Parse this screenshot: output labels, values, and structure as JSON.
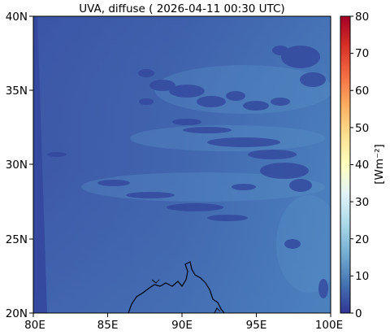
{
  "title": "UVA, diffuse ( 2026-04-11 00:30 UTC)",
  "colorbar": {
    "label": "[Wm⁻²]",
    "ticks": [
      "0",
      "10",
      "20",
      "30",
      "40",
      "50",
      "60",
      "70",
      "80"
    ],
    "min": 0,
    "max": 80,
    "colormap": "RdYlBu_r",
    "colors": [
      "#313695",
      "#4575b4",
      "#74add1",
      "#abd9e9",
      "#e0f3f8",
      "#ffffbf",
      "#fee090",
      "#fdae61",
      "#f46d43",
      "#d73027",
      "#a50026"
    ]
  },
  "axes": {
    "x_ticks": [
      "80E",
      "85E",
      "90E",
      "95E",
      "100E"
    ],
    "y_ticks": [
      "20N",
      "25N",
      "30N",
      "35N",
      "40N"
    ],
    "lon_range": [
      80,
      100
    ],
    "lat_range": [
      20,
      40
    ]
  },
  "chart_data": {
    "type": "heatmap",
    "title": "UVA, diffuse ( 2026-04-11 00:30 UTC)",
    "x_ticks": [
      "80E",
      "85E",
      "90E",
      "95E",
      "100E"
    ],
    "y_ticks": [
      "20N",
      "25N",
      "30N",
      "35N",
      "40N"
    ],
    "xlim": [
      80,
      100
    ],
    "ylim": [
      20,
      40
    ],
    "value_range": [
      0,
      80
    ],
    "colorbar_label": "[Wm⁻²]",
    "field_summary": "diffuse UVA values mostly about 7–13 Wm⁻², lower (~3–6) in cloud streaks near 35N and 28–32N and on the western edge"
  }
}
